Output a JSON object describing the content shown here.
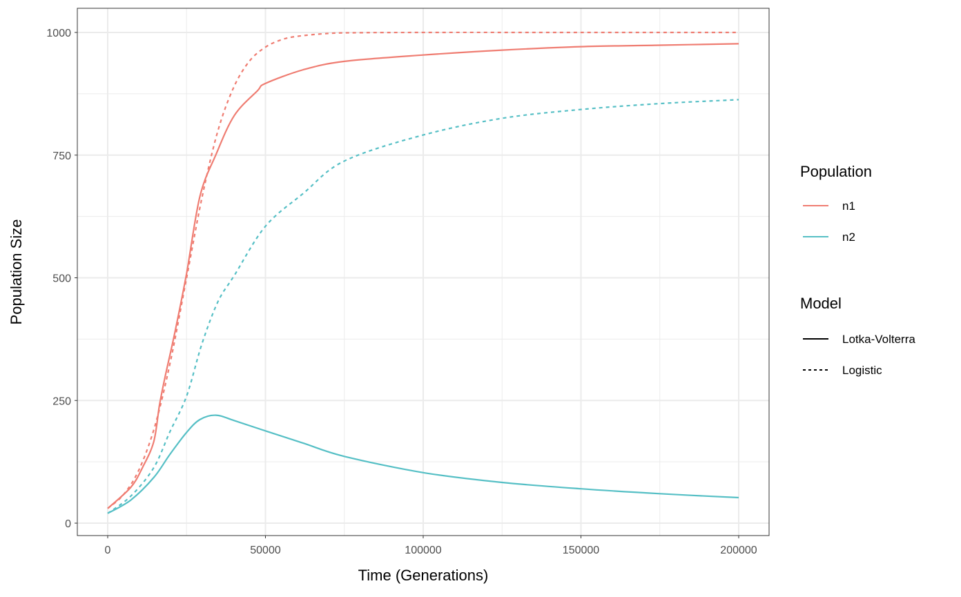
{
  "chart_data": {
    "type": "line",
    "title": "",
    "xlabel": "Time (Generations)",
    "ylabel": "Population Size",
    "xlim": [
      -10000,
      210000
    ],
    "ylim": [
      -25,
      1025
    ],
    "x_ticks": [
      0,
      50000,
      100000,
      150000,
      200000
    ],
    "x_tick_labels": [
      "0",
      "50000",
      "100000",
      "150000",
      "200000"
    ],
    "y_ticks": [
      0,
      250,
      500,
      750,
      1000
    ],
    "y_tick_labels": [
      "0",
      "250",
      "500",
      "750",
      "1000"
    ],
    "grid": true,
    "legend_position": "right",
    "legends": [
      {
        "title": "Population",
        "entries": [
          {
            "label": "n1",
            "color": "#EF7C71"
          },
          {
            "label": "n2",
            "color": "#55BFC5"
          }
        ]
      },
      {
        "title": "Model",
        "entries": [
          {
            "label": "Lotka-Volterra",
            "linetype": "solid"
          },
          {
            "label": "Logistic",
            "linetype": "dashed"
          }
        ]
      }
    ],
    "series": [
      {
        "name": "n1 Lotka-Volterra",
        "population": "n1",
        "model": "Lotka-Volterra",
        "color": "#EF7C71",
        "dash": false,
        "x": [
          0,
          7300,
          11000,
          14600,
          16400,
          18250,
          21200,
          25000,
          29200,
          34300,
          40150,
          47450,
          50000,
          62000,
          75000,
          100000,
          125000,
          150000,
          175000,
          200000
        ],
        "y": [
          30,
          73,
          113,
          166,
          240,
          300,
          386,
          509,
          665,
          751,
          831,
          881,
          896,
          924,
          941,
          954,
          964,
          971,
          974,
          977
        ]
      },
      {
        "name": "n1 Logistic",
        "population": "n1",
        "model": "Logistic",
        "color": "#EF7C71",
        "dash": true,
        "x": [
          0,
          5000,
          10000,
          15000,
          20000,
          25000,
          30000,
          35000,
          40000,
          45000,
          50000,
          55000,
          60000,
          70000,
          80000,
          100000,
          150000,
          200000
        ],
        "y": [
          30,
          58,
          110,
          199,
          333,
          500,
          667,
          801,
          889,
          942,
          970,
          985,
          992,
          998,
          999.5,
          1000,
          1000,
          1000
        ]
      },
      {
        "name": "n2 Lotka-Volterra",
        "population": "n2",
        "model": "Lotka-Volterra",
        "color": "#55BFC5",
        "dash": false,
        "x": [
          0,
          7300,
          14600,
          19700,
          25000,
          29200,
          34300,
          40150,
          50000,
          62000,
          75000,
          100000,
          125000,
          150000,
          175000,
          200000
        ],
        "y": [
          20,
          47,
          93,
          140,
          185,
          211,
          220,
          209,
          188,
          163,
          136,
          103,
          83,
          70,
          60,
          52
        ]
      },
      {
        "name": "n2 Logistic",
        "population": "n2",
        "model": "Logistic",
        "color": "#55BFC5",
        "dash": true,
        "x": [
          0,
          7300,
          14600,
          19700,
          25000,
          29900,
          35000,
          40150,
          50000,
          62000,
          75000,
          100000,
          125000,
          150000,
          175000,
          200000
        ],
        "y": [
          20,
          55,
          113,
          186,
          259,
          366,
          452,
          505,
          605,
          672,
          738,
          791,
          825,
          843,
          855,
          863
        ]
      }
    ]
  }
}
